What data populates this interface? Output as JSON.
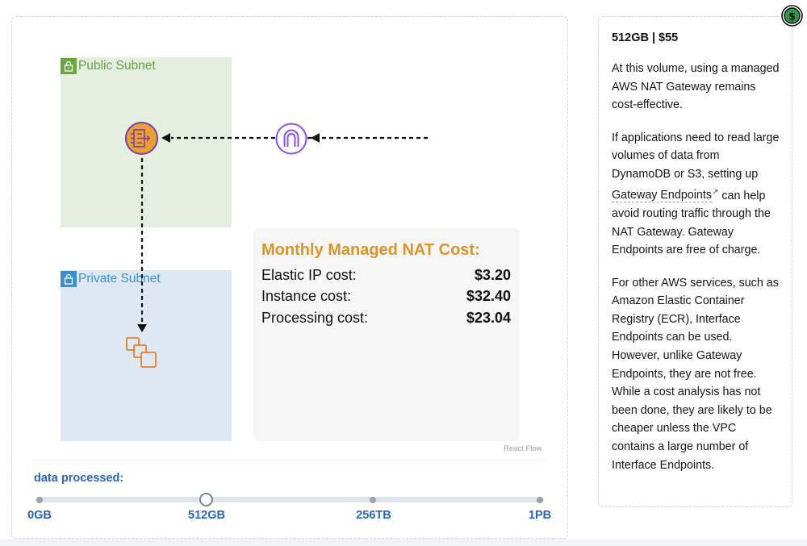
{
  "diagram": {
    "public_subnet_label": "Public Subnet",
    "private_subnet_label": "Private Subnet",
    "nat_gateway_icon": "nat-gateway-icon",
    "internet_gateway_icon": "internet-gateway-icon",
    "instances_icon": "instances-icon",
    "attribution": "React Flow"
  },
  "cost_card": {
    "title": "Monthly Managed NAT Cost:",
    "rows": [
      {
        "label": "Elastic IP cost:",
        "value": "$3.20"
      },
      {
        "label": "Instance cost:",
        "value": "$32.40"
      },
      {
        "label": "Processing cost:",
        "value": "$23.04"
      }
    ]
  },
  "slider": {
    "label": "data processed:",
    "ticks": [
      "0GB",
      "512GB",
      "256TB",
      "1PB"
    ],
    "selected": "512GB"
  },
  "sidebar": {
    "title": "512GB | $55",
    "para1": "At this volume, using a managed AWS NAT Gateway remains cost-effective.",
    "para2_before": "If applications need to read large volumes of data from DynamoDB or S3, setting up",
    "para2_link": "Gateway Endpoints",
    "para2_after": "can help avoid routing traffic through the NAT Gateway. Gateway Endpoints are free of charge.",
    "para3": "For other AWS services, such as Amazon Elastic Container Registry (ECR), Interface Endpoints can be used. However, unlike Gateway Endpoints, they are not free. While a cost analysis has not been done, they are likely to be cheaper unless the VPC contains a large number of Interface Endpoints."
  },
  "colors": {
    "accent_orange": "#dd9522",
    "link_blue": "#2a62c9",
    "public_green": "#64a042",
    "private_blue": "#3c8fcf",
    "igw_purple": "#8c4fff"
  }
}
